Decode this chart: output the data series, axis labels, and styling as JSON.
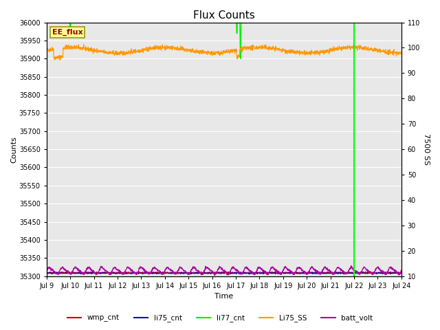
{
  "title": "Flux Counts",
  "xlabel": "Time",
  "ylabel_left": "Counts",
  "ylabel_right": "7500 SS",
  "ylim_left": [
    35300,
    36000
  ],
  "ylim_right": [
    10,
    110
  ],
  "x_start": 9,
  "x_end": 24,
  "x_ticks": [
    9,
    10,
    11,
    12,
    13,
    14,
    15,
    16,
    17,
    18,
    19,
    20,
    21,
    22,
    23,
    24
  ],
  "x_tick_labels": [
    "Jul 9",
    "Jul 10",
    "Jul 11",
    "Jul 12",
    "Jul 13",
    "Jul 14",
    "Jul 15",
    "Jul 16",
    "Jul 17",
    "Jul 18",
    "Jul 19",
    "Jul 20",
    "Jul 21",
    "Jul 22",
    "Jul 23",
    "Jul 24"
  ],
  "yticks_left": [
    35300,
    35350,
    35400,
    35450,
    35500,
    35550,
    35600,
    35650,
    35700,
    35750,
    35800,
    35850,
    35900,
    35950,
    36000
  ],
  "yticks_right": [
    10,
    20,
    30,
    40,
    50,
    60,
    70,
    80,
    90,
    100,
    110
  ],
  "bg_color": "#e8e8e8",
  "legend_annotation": "EE_flux",
  "legend_annotation_bg": "#ffff99",
  "legend_annotation_border": "#999900",
  "wmp_cnt_color": "#cc0000",
  "li75_cnt_color": "#0000cc",
  "li77_cnt_color": "#00ee00",
  "Li75_SS_color": "#ff9900",
  "batt_volt_color": "#aa00aa",
  "green_spike_color": "#00ff00",
  "title_fontsize": 11,
  "grid_color": "#ffffff",
  "figsize": [
    6.4,
    4.8
  ],
  "dpi": 100
}
